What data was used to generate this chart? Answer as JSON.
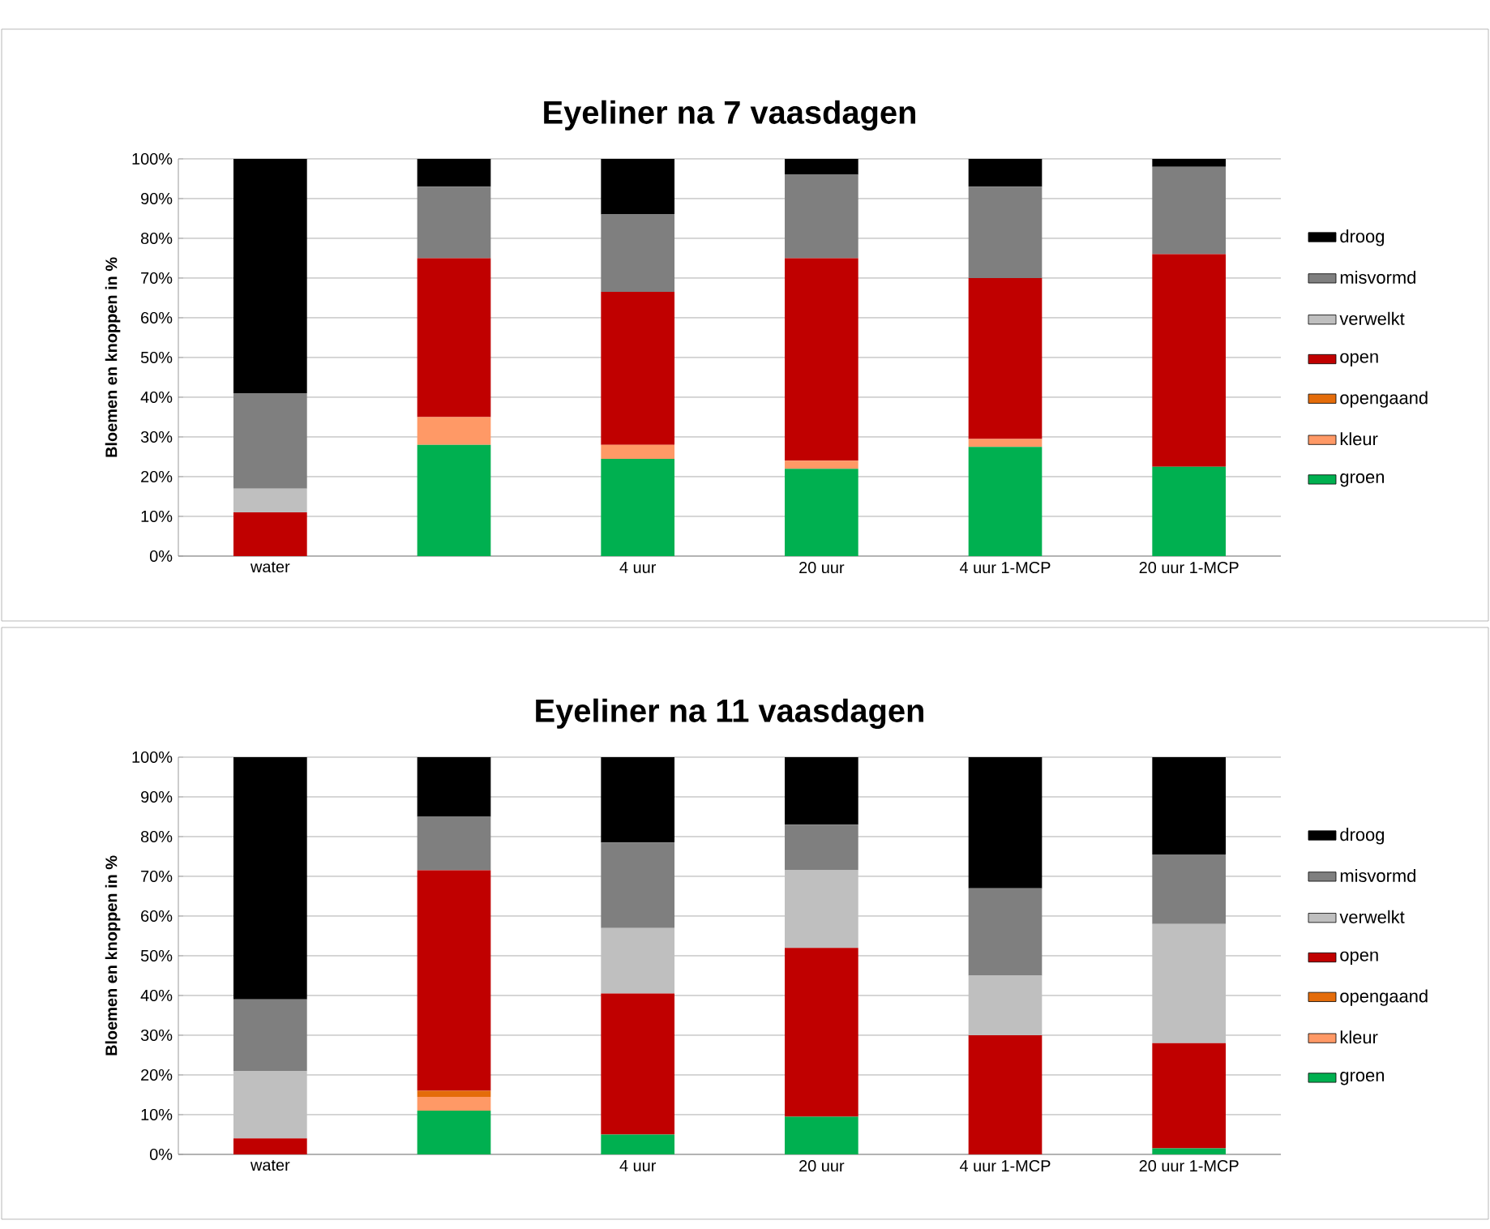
{
  "chart_data": [
    {
      "type": "bar",
      "stacked": true,
      "title": "Eyeliner na 7 vaasdagen",
      "ylabel": "Bloemen en knoppen in %",
      "categories": [
        "water",
        null,
        "4 uur",
        "20 uur",
        "4 uur 1-MCP",
        "20 uur 1-MCP"
      ],
      "series": [
        {
          "name": "groen",
          "color": "#00b050",
          "values": [
            0,
            28,
            24.5,
            22,
            27.5,
            22.5
          ]
        },
        {
          "name": "kleur",
          "color": "#ff9966",
          "values": [
            0,
            7,
            3.5,
            2,
            2,
            0
          ]
        },
        {
          "name": "opengaand",
          "color": "#e46c0a",
          "values": [
            0,
            0,
            0,
            0,
            0,
            0
          ]
        },
        {
          "name": "open",
          "color": "#c00000",
          "values": [
            11,
            40,
            38.5,
            51,
            40.5,
            53.5
          ]
        },
        {
          "name": "verwelkt",
          "color": "#bfbfbf",
          "values": [
            6,
            0,
            0,
            0,
            0,
            0
          ]
        },
        {
          "name": "misvormd",
          "color": "#7f7f7f",
          "values": [
            24,
            18,
            19.5,
            21,
            23,
            22
          ]
        },
        {
          "name": "droog",
          "color": "#000000",
          "values": [
            59,
            7,
            14,
            4,
            7,
            2
          ]
        }
      ],
      "ylim": [
        0,
        100
      ],
      "yticks": [
        {
          "value": 0,
          "label": "0%"
        },
        {
          "value": 10,
          "label": "10%"
        },
        {
          "value": 20,
          "label": "20%"
        },
        {
          "value": 30,
          "label": "30%"
        },
        {
          "value": 40,
          "label": "40%"
        },
        {
          "value": 50,
          "label": "50%"
        },
        {
          "value": 60,
          "label": "60%"
        },
        {
          "value": 70,
          "label": "70%"
        },
        {
          "value": 80,
          "label": "80%"
        },
        {
          "value": 90,
          "label": "90%"
        },
        {
          "value": 100,
          "label": "100%"
        }
      ],
      "grid": "y",
      "legend": "right"
    },
    {
      "type": "bar",
      "stacked": true,
      "title": "Eyeliner na 11 vaasdagen",
      "ylabel": "Bloemen en knoppen in %",
      "categories": [
        "water",
        null,
        "4 uur",
        "20 uur",
        "4 uur 1-MCP",
        "20 uur 1-MCP"
      ],
      "series": [
        {
          "name": "groen",
          "color": "#00b050",
          "values": [
            0,
            11,
            5,
            9.5,
            0,
            1.5
          ]
        },
        {
          "name": "kleur",
          "color": "#ff9966",
          "values": [
            0,
            3.5,
            0,
            0,
            0,
            0
          ]
        },
        {
          "name": "opengaand",
          "color": "#e46c0a",
          "values": [
            0,
            1.5,
            0,
            0,
            0,
            0
          ]
        },
        {
          "name": "open",
          "color": "#c00000",
          "values": [
            4,
            55.5,
            35.5,
            42.5,
            30,
            26.5
          ]
        },
        {
          "name": "verwelkt",
          "color": "#bfbfbf",
          "values": [
            17,
            0,
            16.5,
            19.5,
            15,
            30
          ]
        },
        {
          "name": "misvormd",
          "color": "#7f7f7f",
          "values": [
            18,
            13.5,
            21.5,
            11.5,
            22,
            17.5
          ]
        },
        {
          "name": "droog",
          "color": "#000000",
          "values": [
            61,
            15,
            21.5,
            17,
            33,
            24.5
          ]
        }
      ],
      "ylim": [
        0,
        100
      ],
      "yticks": [
        {
          "value": 0,
          "label": "0%"
        },
        {
          "value": 10,
          "label": "10%"
        },
        {
          "value": 20,
          "label": "20%"
        },
        {
          "value": 30,
          "label": "30%"
        },
        {
          "value": 40,
          "label": "40%"
        },
        {
          "value": 50,
          "label": "50%"
        },
        {
          "value": 60,
          "label": "60%"
        },
        {
          "value": 70,
          "label": "70%"
        },
        {
          "value": 80,
          "label": "80%"
        },
        {
          "value": 90,
          "label": "90%"
        },
        {
          "value": 100,
          "label": "100%"
        }
      ],
      "grid": "y",
      "legend": "right"
    }
  ]
}
